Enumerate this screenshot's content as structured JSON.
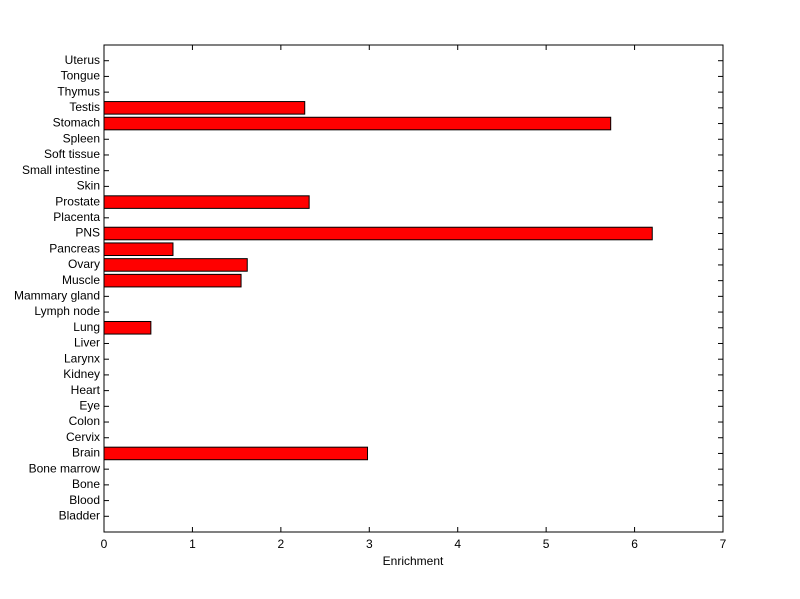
{
  "chart_data": {
    "type": "barh",
    "xlabel": "Enrichment",
    "categories": [
      "Bladder",
      "Blood",
      "Bone",
      "Bone marrow",
      "Brain",
      "Cervix",
      "Colon",
      "Eye",
      "Heart",
      "Kidney",
      "Larynx",
      "Liver",
      "Lung",
      "Lymph node",
      "Mammary gland",
      "Muscle",
      "Ovary",
      "Pancreas",
      "PNS",
      "Placenta",
      "Prostate",
      "Skin",
      "Small intestine",
      "Soft tissue",
      "Spleen",
      "Stomach",
      "Testis",
      "Thymus",
      "Tongue",
      "Uterus"
    ],
    "values": [
      0,
      0,
      0,
      0,
      2.98,
      0,
      0,
      0,
      0,
      0,
      0,
      0,
      0.53,
      0,
      0,
      1.55,
      1.62,
      0.78,
      6.2,
      0,
      2.32,
      0,
      0,
      0,
      0,
      5.73,
      2.27,
      0,
      0,
      0
    ],
    "color": "#ff0000",
    "xlim": [
      0,
      7
    ],
    "xticks": [
      0,
      1,
      2,
      3,
      4,
      5,
      6,
      7
    ]
  }
}
